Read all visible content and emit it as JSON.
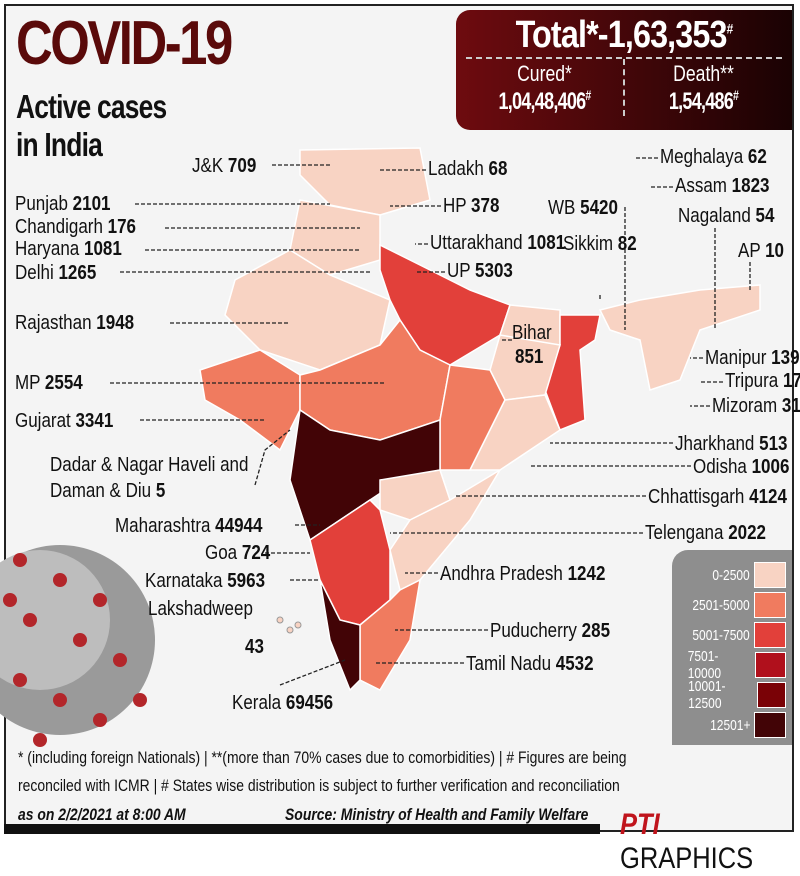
{
  "header": {
    "title": "COVID-19",
    "subtitle_line1": "Active cases",
    "subtitle_line2": "in India"
  },
  "totals": {
    "total_label": "Total*-",
    "total_value": "1,63,353",
    "hash": "#",
    "cured_label": "Cured*",
    "cured_value": "1,04,48,406",
    "death_label": "Death**",
    "death_value": "1,54,486"
  },
  "states": [
    {
      "name": "J&K",
      "value": "709"
    },
    {
      "name": "Ladakh",
      "value": "68"
    },
    {
      "name": "Punjab",
      "value": "2101"
    },
    {
      "name": "HP",
      "value": "378"
    },
    {
      "name": "Chandigarh",
      "value": "176"
    },
    {
      "name": "Haryana",
      "value": "1081"
    },
    {
      "name": "Delhi",
      "value": "1265"
    },
    {
      "name": "Uttarakhand",
      "value": "1081"
    },
    {
      "name": "UP",
      "value": "5303"
    },
    {
      "name": "WB",
      "value": "5420"
    },
    {
      "name": "Sikkim",
      "value": "82"
    },
    {
      "name": "Meghalaya",
      "value": "62"
    },
    {
      "name": "Assam",
      "value": "1823"
    },
    {
      "name": "Nagaland",
      "value": "54"
    },
    {
      "name": "AP",
      "value": "10"
    },
    {
      "name": "Rajasthan",
      "value": "1948"
    },
    {
      "name": "Bihar",
      "value": "851"
    },
    {
      "name": "Manipur",
      "value": "139"
    },
    {
      "name": "Tripura",
      "value": "17"
    },
    {
      "name": "Mizoram",
      "value": "31"
    },
    {
      "name": "MP",
      "value": "2554"
    },
    {
      "name": "Gujarat",
      "value": "3341"
    },
    {
      "name": "Jharkhand",
      "value": "513"
    },
    {
      "name": "Dadar & Nagar Haveli and Daman & Diu",
      "value": "5"
    },
    {
      "name": "Odisha",
      "value": "1006"
    },
    {
      "name": "Chhattisgarh",
      "value": "4124"
    },
    {
      "name": "Maharashtra",
      "value": "44944"
    },
    {
      "name": "Telengana",
      "value": "2022"
    },
    {
      "name": "Goa",
      "value": "724"
    },
    {
      "name": "Karnataka",
      "value": "5963"
    },
    {
      "name": "Andhra Pradesh",
      "value": "1242"
    },
    {
      "name": "Lakshadweep",
      "value": "43"
    },
    {
      "name": "Puducherry",
      "value": "285"
    },
    {
      "name": "Tamil Nadu",
      "value": "4532"
    },
    {
      "name": "Kerala",
      "value": "69456"
    }
  ],
  "legend": [
    {
      "label": "0-2500",
      "color": "#f8d3c3"
    },
    {
      "label": "2501-5000",
      "color": "#f07b5f"
    },
    {
      "label": "5001-7500",
      "color": "#e2403a"
    },
    {
      "label": "7501-10000",
      "color": "#b0101c"
    },
    {
      "label": "10001-12500",
      "color": "#7a0206"
    },
    {
      "label": "12501+",
      "color": "#420406"
    }
  ],
  "footer": {
    "line1": "* (including foreign Nationals) | **(more than 70% cases due to comorbidities) | # Figures are being",
    "line2": "reconciled with ICMR  | # States wise distribution is subject to further verification and reconciliation",
    "date": "as on 2/2/2021 at 8:00 AM",
    "source": "Source: Ministry of Health and Family Welfare",
    "brand_logo": "PTI",
    "brand": "GRAPHICS"
  }
}
